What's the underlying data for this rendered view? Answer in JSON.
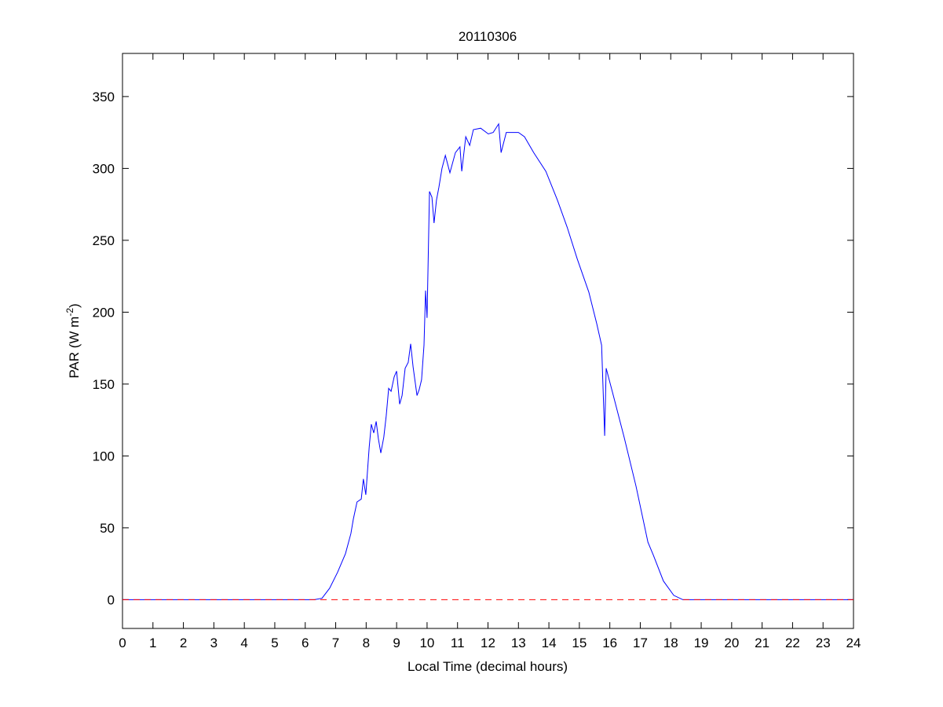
{
  "chart_data": {
    "type": "line",
    "title": "20110306",
    "xlabel": "Local Time (decimal hours)",
    "ylabel": "PAR (W m-2)",
    "ylabel_parts": {
      "main": "PAR (W m",
      "sup": "-2",
      "end": ")"
    },
    "xlim": [
      0,
      24
    ],
    "ylim": [
      -20,
      380
    ],
    "xticks": [
      0,
      1,
      2,
      3,
      4,
      5,
      6,
      7,
      8,
      9,
      10,
      11,
      12,
      13,
      14,
      15,
      16,
      17,
      18,
      19,
      20,
      21,
      22,
      23,
      24
    ],
    "yticks": [
      0,
      50,
      100,
      150,
      200,
      250,
      300,
      350
    ],
    "grid": false,
    "series": [
      {
        "name": "PAR",
        "color": "#0000ff",
        "style": "solid",
        "x": [
          0,
          6.3,
          6.55,
          6.8,
          7.06,
          7.32,
          7.5,
          7.58,
          7.7,
          7.84,
          7.91,
          7.99,
          8.1,
          8.17,
          8.25,
          8.33,
          8.4,
          8.48,
          8.58,
          8.66,
          8.74,
          8.82,
          8.92,
          9.0,
          9.1,
          9.18,
          9.28,
          9.38,
          9.46,
          9.54,
          9.67,
          9.74,
          9.82,
          9.9,
          9.95,
          10.0,
          10.08,
          10.16,
          10.23,
          10.31,
          10.39,
          10.49,
          10.6,
          10.75,
          10.93,
          11.08,
          11.14,
          11.27,
          11.4,
          11.52,
          11.76,
          12.01,
          12.17,
          12.35,
          12.43,
          12.6,
          13.0,
          13.2,
          13.5,
          13.9,
          14.28,
          14.6,
          14.93,
          15.31,
          15.57,
          15.73,
          15.83,
          15.88,
          16.09,
          16.47,
          16.86,
          17.25,
          17.43,
          17.76,
          18.1,
          18.4,
          24
        ],
        "y": [
          0,
          0,
          1,
          8,
          19,
          32,
          46,
          56,
          68,
          70,
          84,
          73,
          106,
          122,
          116,
          124,
          112,
          102,
          113,
          128,
          147,
          145,
          155,
          159,
          136,
          142,
          161,
          165,
          178,
          162,
          142,
          146,
          153,
          177,
          215,
          196,
          284,
          280,
          262,
          278,
          287,
          300,
          309,
          297,
          311,
          315,
          298,
          322,
          316,
          327,
          328,
          324,
          325,
          331,
          311,
          325,
          325,
          322,
          311,
          298,
          278,
          259,
          237,
          214,
          192,
          177,
          114,
          161,
          144,
          113,
          79,
          40,
          31,
          13,
          3,
          0,
          0
        ]
      },
      {
        "name": "zero line",
        "color": "#ff0000",
        "style": "dashed",
        "x": [
          0,
          24
        ],
        "y": [
          0,
          0
        ]
      }
    ]
  }
}
